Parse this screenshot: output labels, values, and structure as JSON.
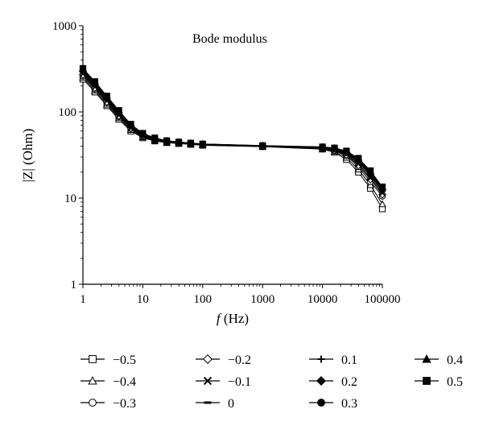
{
  "chart_data": {
    "type": "line",
    "title": "Bode modulus",
    "xlabel_symbol": "f",
    "xlabel_unit": " (Hz)",
    "ylabel": "|Z| (Ohm)",
    "xscale": "log",
    "yscale": "log",
    "xlim": [
      1,
      100000
    ],
    "ylim": [
      1,
      1000
    ],
    "x_ticks": [
      "1",
      "10",
      "100",
      "1000",
      "10000",
      "100000"
    ],
    "y_ticks": [
      "1",
      "10",
      "100",
      "1000"
    ],
    "grid": false,
    "legend_placement": "bottom",
    "x": [
      1,
      1.585,
      2.512,
      3.981,
      6.31,
      10,
      15.85,
      25.12,
      39.81,
      63.1,
      100,
      1000,
      10000,
      15850,
      25120,
      39810,
      63100,
      100000
    ],
    "series": [
      {
        "name": "−0.5",
        "marker": "square-open",
        "values": [
          240,
          170,
          118,
          82,
          60,
          50,
          46,
          44,
          43,
          42,
          41,
          39.5,
          37,
          34,
          28,
          20,
          13,
          7.5
        ]
      },
      {
        "name": "−0.4",
        "marker": "triangle-open",
        "values": [
          250,
          177,
          122,
          85,
          62,
          51,
          46.5,
          44.3,
          43.2,
          42.2,
          41.2,
          39.7,
          37.5,
          34.8,
          29.5,
          21.5,
          14.2,
          8.5
        ]
      },
      {
        "name": "−0.3",
        "marker": "circle-open",
        "values": [
          260,
          184,
          127,
          88,
          64,
          52,
          47,
          44.6,
          43.4,
          42.4,
          41.4,
          39.9,
          38,
          35.5,
          31,
          23,
          15.5,
          10.5
        ]
      },
      {
        "name": "−0.2",
        "marker": "diamond-open",
        "values": [
          270,
          190,
          131,
          90,
          65,
          53,
          47.5,
          44.9,
          43.6,
          42.6,
          41.6,
          40,
          38.3,
          36,
          31.8,
          24,
          16.5,
          11
        ]
      },
      {
        "name": "−0.1",
        "marker": "x",
        "values": [
          278,
          196,
          135,
          92,
          66,
          53.5,
          48,
          45.2,
          43.8,
          42.8,
          41.8,
          40.1,
          38.5,
          36.5,
          32.5,
          25,
          17.2,
          11.5
        ]
      },
      {
        "name": "0",
        "marker": "dash",
        "values": [
          285,
          201,
          138,
          94,
          67,
          54,
          48.3,
          45.4,
          44,
          43,
          42,
          40.2,
          38.7,
          37,
          33,
          26,
          18,
          12
        ]
      },
      {
        "name": "0.1",
        "marker": "plus",
        "values": [
          292,
          206,
          141,
          96,
          68,
          54.5,
          48.6,
          45.6,
          44.2,
          43.1,
          42.1,
          40.3,
          38.9,
          37.3,
          33.5,
          26.8,
          18.6,
          12.3
        ]
      },
      {
        "name": "0.2",
        "marker": "diamond-filled",
        "values": [
          300,
          211,
          144,
          98,
          69,
          55,
          49,
          45.8,
          44.4,
          43.2,
          42.2,
          40.4,
          39,
          37.6,
          34,
          27.5,
          19.2,
          12.6
        ]
      },
      {
        "name": "0.3",
        "marker": "circle-filled",
        "values": [
          307,
          216,
          147,
          100,
          70,
          55.5,
          49.3,
          46,
          44.5,
          43.3,
          42.3,
          40.5,
          39.1,
          37.8,
          34.4,
          28,
          19.8,
          12.9
        ]
      },
      {
        "name": "0.4",
        "marker": "triangle-filled",
        "values": [
          313,
          220,
          150,
          102,
          71,
          56,
          49.6,
          46.2,
          44.7,
          43.4,
          42.4,
          40.6,
          39.2,
          38,
          34.8,
          28.5,
          20.3,
          13.2
        ]
      },
      {
        "name": "0.5",
        "marker": "square-filled",
        "values": [
          320,
          225,
          153,
          104,
          72,
          56.5,
          50,
          46.4,
          44.8,
          43.5,
          42.5,
          40.7,
          39.3,
          38.2,
          35.2,
          29,
          20.8,
          13.5
        ]
      }
    ]
  }
}
